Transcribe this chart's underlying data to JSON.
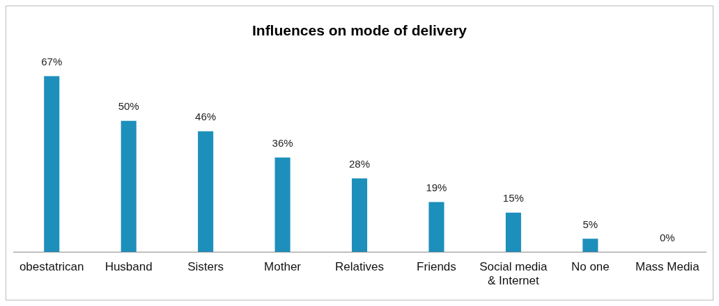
{
  "chart_data": {
    "type": "bar",
    "title": "Influences on mode of delivery",
    "categories": [
      "obestatrican",
      "Husband",
      "Sisters",
      "Mother",
      "Relatives",
      "Friends",
      "Social media & Internet",
      "No one",
      "Mass Media"
    ],
    "values": [
      67,
      50,
      46,
      36,
      28,
      19,
      15,
      5,
      0
    ],
    "value_labels": [
      "67%",
      "50%",
      "46%",
      "36%",
      "28%",
      "19%",
      "15%",
      "5%",
      "0%"
    ],
    "color": "#1d8fbb",
    "grid": false,
    "legend": false
  }
}
